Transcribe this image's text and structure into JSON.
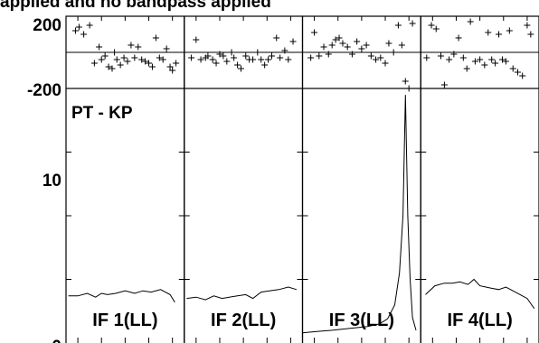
{
  "title_fragment": "applied and no bandpass applied",
  "baseline_label": "PT - KP",
  "phase_axis": {
    "top_label": "200",
    "bottom_label": "-200",
    "ylim": [
      -200,
      200
    ]
  },
  "amp_axis": {
    "tick_labels": [
      "10",
      "0"
    ],
    "ylim": [
      0,
      20
    ]
  },
  "chart_data": {
    "type": "line",
    "grid": false,
    "panels": [
      {
        "label": "IF 1(LL)",
        "phase": {
          "x": [
            0.08,
            0.11,
            0.15,
            0.2,
            0.24,
            0.28,
            0.3,
            0.33,
            0.36,
            0.39,
            0.41,
            0.43,
            0.46,
            0.49,
            0.52,
            0.55,
            0.58,
            0.61,
            0.64,
            0.67,
            0.7,
            0.73,
            0.76,
            0.79,
            0.82,
            0.85,
            0.88,
            0.9,
            0.93
          ],
          "y": [
            120,
            140,
            100,
            150,
            -60,
            30,
            -40,
            -20,
            -80,
            -90,
            0,
            -40,
            -70,
            -30,
            -50,
            40,
            -30,
            30,
            -40,
            -50,
            -60,
            -80,
            80,
            -30,
            -40,
            20,
            -80,
            -100,
            -60
          ]
        },
        "amplitude": {
          "x": [
            0.02,
            0.1,
            0.18,
            0.25,
            0.3,
            0.35,
            0.42,
            0.5,
            0.58,
            0.65,
            0.72,
            0.8,
            0.88,
            0.92
          ],
          "y": [
            3.7,
            3.7,
            3.9,
            3.6,
            3.9,
            3.8,
            3.9,
            4.1,
            3.9,
            4.1,
            4.0,
            4.2,
            3.8,
            3.2
          ]
        }
      },
      {
        "label": "IF 2(LL)",
        "phase": {
          "x": [
            0.06,
            0.1,
            0.14,
            0.18,
            0.2,
            0.24,
            0.27,
            0.3,
            0.33,
            0.36,
            0.4,
            0.42,
            0.45,
            0.48,
            0.52,
            0.55,
            0.58,
            0.62,
            0.65,
            0.68,
            0.71,
            0.74,
            0.78,
            0.81,
            0.85,
            0.88,
            0.92
          ],
          "y": [
            -30,
            70,
            -40,
            -30,
            -20,
            -40,
            -60,
            -10,
            -20,
            -50,
            0,
            -30,
            -70,
            -90,
            -20,
            -40,
            -40,
            0,
            -40,
            -70,
            -40,
            -20,
            80,
            -30,
            10,
            -40,
            60
          ]
        },
        "amplitude": {
          "x": [
            0.02,
            0.1,
            0.18,
            0.25,
            0.32,
            0.38,
            0.45,
            0.52,
            0.58,
            0.65,
            0.72,
            0.8,
            0.88,
            0.95
          ],
          "y": [
            3.5,
            3.6,
            3.4,
            3.7,
            3.5,
            3.6,
            3.7,
            3.8,
            3.5,
            4.0,
            4.1,
            4.2,
            4.4,
            4.2
          ]
        }
      },
      {
        "label": "IF 3(LL)",
        "phase": {
          "x": [
            0.07,
            0.1,
            0.14,
            0.18,
            0.22,
            0.25,
            0.28,
            0.31,
            0.34,
            0.38,
            0.42,
            0.46,
            0.5,
            0.54,
            0.58,
            0.62,
            0.66,
            0.7,
            0.73,
            0.77,
            0.81,
            0.84,
            0.87,
            0.9,
            0.93
          ],
          "y": [
            -30,
            110,
            -20,
            30,
            -10,
            40,
            70,
            80,
            50,
            30,
            -10,
            60,
            20,
            40,
            -20,
            -40,
            -30,
            -60,
            50,
            0,
            150,
            40,
            -160,
            -200,
            160
          ]
        },
        "amplitude": {
          "x": [
            0.0,
            0.12,
            0.25,
            0.35,
            0.45,
            0.55,
            0.65,
            0.72,
            0.78,
            0.82,
            0.85,
            0.87,
            0.89,
            0.91,
            0.93,
            0.96
          ],
          "y": [
            0.8,
            0.9,
            1.0,
            1.1,
            1.2,
            1.3,
            1.5,
            1.9,
            3.0,
            5.5,
            10.0,
            19.5,
            10.0,
            5.0,
            2.0,
            1.0
          ]
        }
      },
      {
        "label": "IF 4(LL)",
        "phase": {
          "x": [
            0.05,
            0.09,
            0.13,
            0.17,
            0.2,
            0.24,
            0.28,
            0.32,
            0.36,
            0.39,
            0.42,
            0.46,
            0.5,
            0.54,
            0.57,
            0.6,
            0.63,
            0.66,
            0.69,
            0.72,
            0.75,
            0.78,
            0.82,
            0.86,
            0.9,
            0.93
          ],
          "y": [
            -30,
            150,
            130,
            -20,
            -180,
            -40,
            -10,
            80,
            -30,
            -90,
            170,
            -50,
            -40,
            -70,
            110,
            -40,
            -60,
            100,
            -40,
            -50,
            120,
            -90,
            -110,
            -130,
            150,
            100
          ]
        },
        "amplitude": {
          "x": [
            0.04,
            0.12,
            0.2,
            0.27,
            0.33,
            0.4,
            0.45,
            0.5,
            0.55,
            0.6,
            0.66,
            0.72,
            0.78,
            0.84,
            0.9,
            0.96
          ],
          "y": [
            3.8,
            4.5,
            4.7,
            4.7,
            4.8,
            4.6,
            5.0,
            4.5,
            4.4,
            4.3,
            4.2,
            4.4,
            4.1,
            3.8,
            3.5,
            2.7
          ]
        }
      }
    ]
  }
}
